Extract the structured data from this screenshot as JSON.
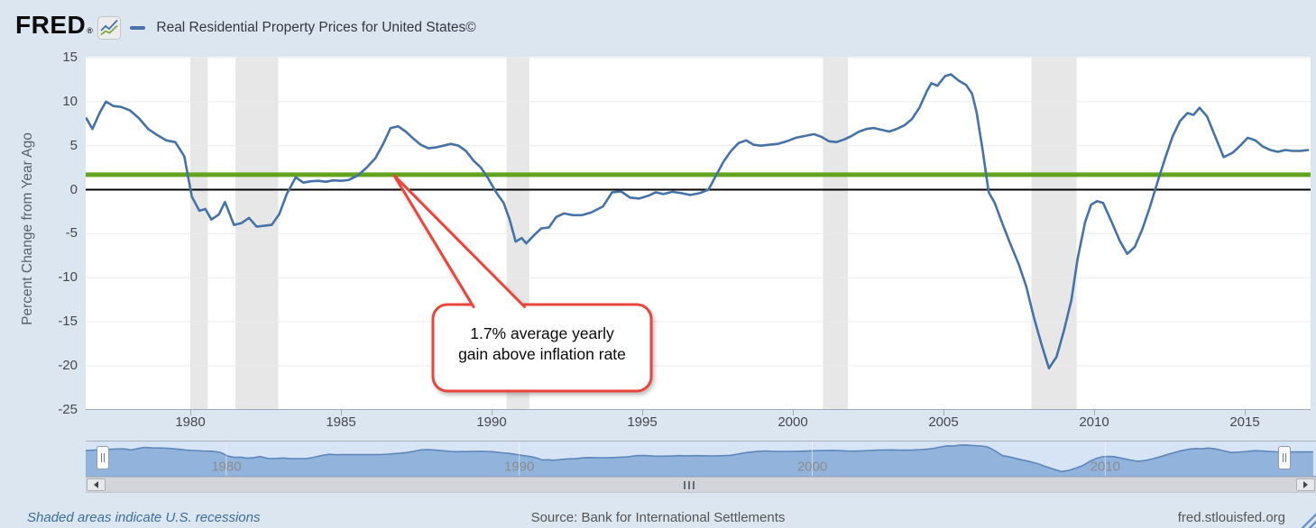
{
  "header": {
    "logo_text": "FRED",
    "registered_mark": "®",
    "logo_icon": "line-chart-icon",
    "series_label": "Real Residential Property Prices for United States©",
    "series_color": "#4572a7"
  },
  "chart_data": {
    "type": "line",
    "title": "Real Residential Property Prices for United States©",
    "xlabel": "",
    "ylabel": "Percent Change from Year Ago",
    "xlim": [
      1976.5,
      2017.2
    ],
    "ylim": [
      -25,
      15
    ],
    "x_ticks": [
      1980,
      1985,
      1990,
      1995,
      2000,
      2005,
      2010,
      2015
    ],
    "y_ticks": [
      15,
      10,
      5,
      0,
      -5,
      -10,
      -15,
      -20,
      -25
    ],
    "grid": true,
    "legend_position": "top-left",
    "series": [
      {
        "name": "Real Residential Property Prices for United States©",
        "type": "line",
        "color": "#4572a7",
        "points": [
          [
            1976.55,
            8.1
          ],
          [
            1976.75,
            6.9
          ],
          [
            1977.0,
            8.8
          ],
          [
            1977.2,
            10.0
          ],
          [
            1977.45,
            9.5
          ],
          [
            1977.7,
            9.4
          ],
          [
            1978.0,
            9.0
          ],
          [
            1978.3,
            8.1
          ],
          [
            1978.6,
            6.9
          ],
          [
            1978.9,
            6.2
          ],
          [
            1979.2,
            5.6
          ],
          [
            1979.5,
            5.4
          ],
          [
            1979.8,
            3.8
          ],
          [
            1980.05,
            -0.8
          ],
          [
            1980.3,
            -2.4
          ],
          [
            1980.5,
            -2.2
          ],
          [
            1980.7,
            -3.4
          ],
          [
            1980.95,
            -2.8
          ],
          [
            1981.15,
            -1.4
          ],
          [
            1981.45,
            -4.0
          ],
          [
            1981.7,
            -3.8
          ],
          [
            1981.95,
            -3.2
          ],
          [
            1982.2,
            -4.2
          ],
          [
            1982.45,
            -4.1
          ],
          [
            1982.7,
            -4.0
          ],
          [
            1982.95,
            -2.8
          ],
          [
            1983.2,
            -0.5
          ],
          [
            1983.5,
            1.4
          ],
          [
            1983.75,
            0.8
          ],
          [
            1984.0,
            0.95
          ],
          [
            1984.25,
            1.0
          ],
          [
            1984.5,
            0.9
          ],
          [
            1984.75,
            1.05
          ],
          [
            1985.0,
            1.0
          ],
          [
            1985.25,
            1.1
          ],
          [
            1985.55,
            1.6
          ],
          [
            1985.85,
            2.5
          ],
          [
            1986.15,
            3.6
          ],
          [
            1986.4,
            5.2
          ],
          [
            1986.65,
            7.0
          ],
          [
            1986.9,
            7.2
          ],
          [
            1987.15,
            6.6
          ],
          [
            1987.4,
            5.8
          ],
          [
            1987.65,
            5.1
          ],
          [
            1987.9,
            4.7
          ],
          [
            1988.15,
            4.8
          ],
          [
            1988.4,
            5.0
          ],
          [
            1988.65,
            5.2
          ],
          [
            1988.9,
            5.0
          ],
          [
            1989.15,
            4.4
          ],
          [
            1989.4,
            3.3
          ],
          [
            1989.65,
            2.5
          ],
          [
            1989.9,
            1.2
          ],
          [
            1990.15,
            -0.3
          ],
          [
            1990.4,
            -1.5
          ],
          [
            1990.6,
            -3.4
          ],
          [
            1990.8,
            -5.9
          ],
          [
            1991.0,
            -5.5
          ],
          [
            1991.15,
            -6.1
          ],
          [
            1991.4,
            -5.2
          ],
          [
            1991.65,
            -4.4
          ],
          [
            1991.9,
            -4.3
          ],
          [
            1992.15,
            -3.1
          ],
          [
            1992.4,
            -2.7
          ],
          [
            1992.7,
            -2.9
          ],
          [
            1993.0,
            -2.9
          ],
          [
            1993.3,
            -2.6
          ],
          [
            1993.7,
            -1.9
          ],
          [
            1994.0,
            -0.3
          ],
          [
            1994.3,
            -0.2
          ],
          [
            1994.6,
            -0.9
          ],
          [
            1994.9,
            -1.0
          ],
          [
            1995.2,
            -0.7
          ],
          [
            1995.45,
            -0.3
          ],
          [
            1995.7,
            -0.5
          ],
          [
            1996.0,
            -0.25
          ],
          [
            1996.3,
            -0.4
          ],
          [
            1996.6,
            -0.6
          ],
          [
            1996.9,
            -0.4
          ],
          [
            1997.2,
            0.0
          ],
          [
            1997.45,
            1.6
          ],
          [
            1997.7,
            3.2
          ],
          [
            1997.95,
            4.4
          ],
          [
            1998.2,
            5.3
          ],
          [
            1998.45,
            5.6
          ],
          [
            1998.7,
            5.1
          ],
          [
            1998.95,
            5.0
          ],
          [
            1999.2,
            5.1
          ],
          [
            1999.5,
            5.2
          ],
          [
            1999.8,
            5.5
          ],
          [
            2000.1,
            5.9
          ],
          [
            2000.4,
            6.1
          ],
          [
            2000.7,
            6.3
          ],
          [
            2000.95,
            6.0
          ],
          [
            2001.2,
            5.5
          ],
          [
            2001.45,
            5.4
          ],
          [
            2001.7,
            5.7
          ],
          [
            2001.95,
            6.1
          ],
          [
            2002.2,
            6.6
          ],
          [
            2002.45,
            6.9
          ],
          [
            2002.7,
            7.0
          ],
          [
            2002.95,
            6.8
          ],
          [
            2003.2,
            6.6
          ],
          [
            2003.45,
            6.9
          ],
          [
            2003.7,
            7.3
          ],
          [
            2003.95,
            8.0
          ],
          [
            2004.2,
            9.3
          ],
          [
            2004.45,
            11.2
          ],
          [
            2004.6,
            12.1
          ],
          [
            2004.8,
            11.8
          ],
          [
            2005.05,
            12.9
          ],
          [
            2005.25,
            13.1
          ],
          [
            2005.5,
            12.4
          ],
          [
            2005.75,
            11.9
          ],
          [
            2005.95,
            10.9
          ],
          [
            2006.1,
            8.8
          ],
          [
            2006.3,
            4.5
          ],
          [
            2006.5,
            -0.3
          ],
          [
            2006.7,
            -1.5
          ],
          [
            2006.95,
            -3.8
          ],
          [
            2007.2,
            -6.0
          ],
          [
            2007.5,
            -8.5
          ],
          [
            2007.75,
            -11.0
          ],
          [
            2008.0,
            -14.5
          ],
          [
            2008.25,
            -17.5
          ],
          [
            2008.5,
            -20.3
          ],
          [
            2008.75,
            -19.0
          ],
          [
            2009.0,
            -16.0
          ],
          [
            2009.25,
            -12.5
          ],
          [
            2009.45,
            -7.9
          ],
          [
            2009.7,
            -3.7
          ],
          [
            2009.9,
            -1.7
          ],
          [
            2010.1,
            -1.3
          ],
          [
            2010.3,
            -1.5
          ],
          [
            2010.6,
            -3.8
          ],
          [
            2010.85,
            -5.8
          ],
          [
            2011.1,
            -7.3
          ],
          [
            2011.35,
            -6.5
          ],
          [
            2011.6,
            -4.5
          ],
          [
            2011.85,
            -2.0
          ],
          [
            2012.1,
            0.8
          ],
          [
            2012.35,
            3.5
          ],
          [
            2012.6,
            6.0
          ],
          [
            2012.85,
            7.8
          ],
          [
            2013.1,
            8.7
          ],
          [
            2013.3,
            8.5
          ],
          [
            2013.5,
            9.3
          ],
          [
            2013.75,
            8.3
          ],
          [
            2014.0,
            6.2
          ],
          [
            2014.3,
            3.7
          ],
          [
            2014.6,
            4.2
          ],
          [
            2014.85,
            5.0
          ],
          [
            2015.1,
            5.9
          ],
          [
            2015.35,
            5.6
          ],
          [
            2015.6,
            4.9
          ],
          [
            2015.85,
            4.5
          ],
          [
            2016.1,
            4.3
          ],
          [
            2016.35,
            4.5
          ],
          [
            2016.6,
            4.4
          ],
          [
            2016.85,
            4.4
          ],
          [
            2017.1,
            4.5
          ]
        ]
      },
      {
        "name": "1.7% average yearly gain above inflation rate",
        "type": "horizontal-line",
        "color": "#63a41e",
        "value": 1.7
      },
      {
        "name": "zero line",
        "type": "horizontal-line",
        "color": "#000000",
        "value": 0
      }
    ],
    "recession_bands": [
      [
        1980.0,
        1980.58
      ],
      [
        1981.5,
        1982.92
      ],
      [
        1990.5,
        1991.25
      ],
      [
        2001.0,
        2001.83
      ],
      [
        2007.92,
        2009.42
      ]
    ],
    "annotation": {
      "text_line1": "1.7% average yearly",
      "text_line2": "gain above inflation rate",
      "border_color": "#e8463d",
      "points_to": {
        "x": 1986.77,
        "y": 1.7
      }
    }
  },
  "range_selector": {
    "decade_labels": [
      1980,
      1990,
      2000,
      2010
    ],
    "x_range": [
      1975.2,
      2017.2
    ],
    "prefix_points": [
      [
        1975.2,
        6.2
      ],
      [
        1975.5,
        6.8
      ],
      [
        1975.8,
        7.3
      ],
      [
        1976.1,
        7.8
      ],
      [
        1976.4,
        8.2
      ]
    ],
    "left_handle_icon": "drag-grip",
    "right_handle_icon": "drag-grip"
  },
  "scrollbar": {
    "left_icon": "left-arrow",
    "right_icon": "right-arrow",
    "grip_icon": "grip-lines"
  },
  "footer": {
    "recession_note": "Shaded areas indicate U.S. recessions",
    "source": "Source: Bank for International Settlements",
    "site_link": "fred.stlouisfed.org"
  },
  "colors": {
    "page_background": "#dce6f1",
    "plot_background": "#ffffff",
    "gridline": "#ebebeb",
    "axis_line": "#9cabbc",
    "recession_band": "#e7e7e7",
    "series_blue": "#4572a7",
    "target_green": "#63a41e",
    "callout_red": "#e8463d",
    "mini_fill": "#92b3dc",
    "mini_line": "#5d87bb",
    "mini_label": "#8d8d8d"
  }
}
